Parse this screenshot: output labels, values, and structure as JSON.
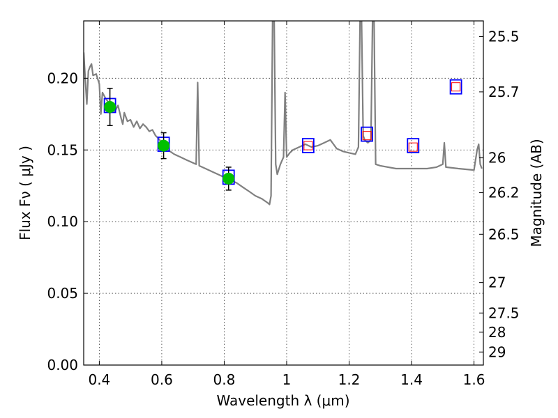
{
  "chart_data": {
    "type": "scatter",
    "title": "",
    "xlabel": "Wavelength  λ (μm)",
    "ylabel": "Flux  Fν  ( μJy )",
    "y2label": "Magnitude (AB)",
    "xlim": [
      0.35,
      1.63
    ],
    "ylim": [
      0.0,
      0.24
    ],
    "grid": true,
    "x_ticks": [
      0.4,
      0.6,
      0.8,
      1.0,
      1.2,
      1.4,
      1.6
    ],
    "x_tick_labels": [
      "0.4",
      "0.6",
      "0.8",
      "1",
      "1.2",
      "1.4",
      "1.6"
    ],
    "y_ticks": [
      0.0,
      0.05,
      0.1,
      0.15,
      0.2
    ],
    "y_tick_labels": [
      "0.00",
      "0.05",
      "0.10",
      "0.15",
      "0.20"
    ],
    "y2_ticks": [
      {
        "label": "25.5",
        "flux": 0.2291
      },
      {
        "label": "25.7",
        "flux": 0.1905
      },
      {
        "label": "26",
        "flux": 0.1445
      },
      {
        "label": "26.2",
        "flux": 0.1202
      },
      {
        "label": "26.5",
        "flux": 0.0912
      },
      {
        "label": "27",
        "flux": 0.0575
      },
      {
        "label": "27.5",
        "flux": 0.0363
      },
      {
        "label": "28",
        "flux": 0.0229
      },
      {
        "label": "29",
        "flux": 0.0091
      }
    ],
    "colors": {
      "spectrum": "#808080",
      "observed_marker": "#00c000",
      "model_square": "#0000ff",
      "predicted_square": "#ff0000",
      "errorbar": "#000000"
    },
    "series": [
      {
        "kind": "line",
        "points": [
          [
            0.35,
            0.218
          ],
          [
            0.355,
            0.2
          ],
          [
            0.36,
            0.182
          ],
          [
            0.365,
            0.205
          ],
          [
            0.37,
            0.208
          ],
          [
            0.375,
            0.21
          ],
          [
            0.38,
            0.202
          ],
          [
            0.39,
            0.203
          ],
          [
            0.4,
            0.196
          ],
          [
            0.405,
            0.175
          ],
          [
            0.41,
            0.19
          ],
          [
            0.42,
            0.186
          ],
          [
            0.43,
            0.183
          ],
          [
            0.44,
            0.179
          ],
          [
            0.45,
            0.177
          ],
          [
            0.46,
            0.181
          ],
          [
            0.47,
            0.172
          ],
          [
            0.475,
            0.168
          ],
          [
            0.48,
            0.176
          ],
          [
            0.49,
            0.17
          ],
          [
            0.5,
            0.171
          ],
          [
            0.51,
            0.166
          ],
          [
            0.52,
            0.17
          ],
          [
            0.53,
            0.165
          ],
          [
            0.54,
            0.168
          ],
          [
            0.55,
            0.166
          ],
          [
            0.56,
            0.163
          ],
          [
            0.57,
            0.164
          ],
          [
            0.58,
            0.16
          ],
          [
            0.59,
            0.158
          ],
          [
            0.6,
            0.155
          ],
          [
            0.62,
            0.15
          ],
          [
            0.64,
            0.147
          ],
          [
            0.66,
            0.145
          ],
          [
            0.68,
            0.143
          ],
          [
            0.7,
            0.141
          ],
          [
            0.71,
            0.14
          ],
          [
            0.715,
            0.197
          ],
          [
            0.72,
            0.139
          ],
          [
            0.74,
            0.137
          ],
          [
            0.76,
            0.135
          ],
          [
            0.78,
            0.133
          ],
          [
            0.8,
            0.131
          ],
          [
            0.82,
            0.129
          ],
          [
            0.84,
            0.127
          ],
          [
            0.86,
            0.124
          ],
          [
            0.88,
            0.121
          ],
          [
            0.9,
            0.118
          ],
          [
            0.92,
            0.116
          ],
          [
            0.94,
            0.113
          ],
          [
            0.945,
            0.112
          ],
          [
            0.95,
            0.118
          ],
          [
            0.955,
            0.24
          ],
          [
            0.96,
            0.24
          ],
          [
            0.965,
            0.14
          ],
          [
            0.97,
            0.133
          ],
          [
            0.98,
            0.14
          ],
          [
            0.99,
            0.145
          ],
          [
            0.995,
            0.19
          ],
          [
            1.0,
            0.145
          ],
          [
            1.01,
            0.148
          ],
          [
            1.02,
            0.15
          ],
          [
            1.04,
            0.152
          ],
          [
            1.06,
            0.154
          ],
          [
            1.08,
            0.152
          ],
          [
            1.1,
            0.153
          ],
          [
            1.12,
            0.155
          ],
          [
            1.14,
            0.157
          ],
          [
            1.15,
            0.154
          ],
          [
            1.16,
            0.151
          ],
          [
            1.18,
            0.149
          ],
          [
            1.2,
            0.148
          ],
          [
            1.22,
            0.147
          ],
          [
            1.23,
            0.152
          ],
          [
            1.235,
            0.24
          ],
          [
            1.24,
            0.24
          ],
          [
            1.245,
            0.16
          ],
          [
            1.25,
            0.157
          ],
          [
            1.26,
            0.155
          ],
          [
            1.27,
            0.157
          ],
          [
            1.275,
            0.24
          ],
          [
            1.28,
            0.24
          ],
          [
            1.285,
            0.14
          ],
          [
            1.3,
            0.139
          ],
          [
            1.35,
            0.137
          ],
          [
            1.4,
            0.137
          ],
          [
            1.45,
            0.137
          ],
          [
            1.48,
            0.138
          ],
          [
            1.5,
            0.14
          ],
          [
            1.505,
            0.155
          ],
          [
            1.51,
            0.138
          ],
          [
            1.55,
            0.137
          ],
          [
            1.6,
            0.136
          ],
          [
            1.61,
            0.15
          ],
          [
            1.615,
            0.154
          ],
          [
            1.62,
            0.14
          ],
          [
            1.625,
            0.137
          ]
        ]
      },
      {
        "kind": "observed",
        "points": [
          {
            "x": 0.434,
            "y": 0.18,
            "err": 0.013
          },
          {
            "x": 0.606,
            "y": 0.153,
            "err": 0.009
          },
          {
            "x": 0.814,
            "y": 0.13,
            "err": 0.008
          }
        ]
      },
      {
        "kind": "model",
        "points": [
          {
            "x": 0.434,
            "y": 0.181
          },
          {
            "x": 0.606,
            "y": 0.154
          },
          {
            "x": 0.814,
            "y": 0.131
          },
          {
            "x": 1.069,
            "y": 0.153
          },
          {
            "x": 1.257,
            "y": 0.161
          },
          {
            "x": 1.405,
            "y": 0.153
          },
          {
            "x": 1.542,
            "y": 0.194
          }
        ]
      },
      {
        "kind": "predicted",
        "points": [
          {
            "x": 1.069,
            "y": 0.153
          },
          {
            "x": 1.257,
            "y": 0.16
          },
          {
            "x": 1.405,
            "y": 0.152
          },
          {
            "x": 1.542,
            "y": 0.194
          }
        ]
      }
    ]
  }
}
